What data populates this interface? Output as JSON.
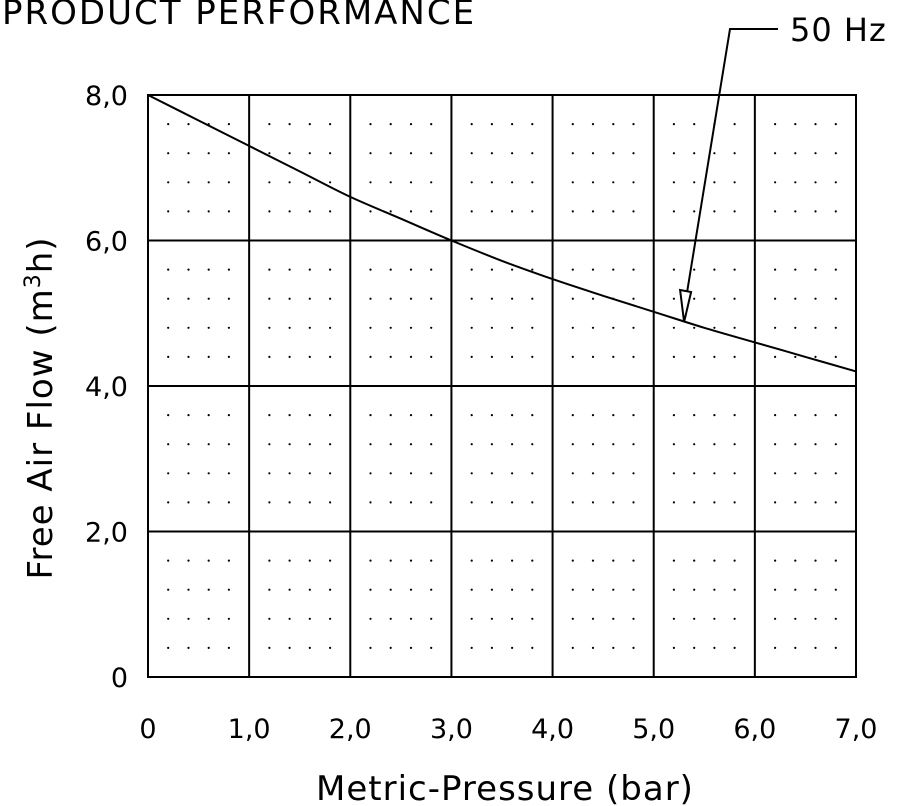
{
  "chart_data": {
    "type": "line",
    "title": "PRODUCT PERFORMANCE",
    "xlabel": "Metric-Pressure (bar)",
    "ylabel": "Free Air Flow (m3h)",
    "ylabel_parts": {
      "pre": "Free Air Flow (m",
      "sup": "3",
      "post": "h)"
    },
    "xlim": [
      0,
      7
    ],
    "ylim": [
      0,
      8
    ],
    "x_ticks": [
      0,
      1,
      2,
      3,
      4,
      5,
      6,
      7
    ],
    "x_tick_labels": [
      "0",
      "1,0",
      "2,0",
      "3,0",
      "4,0",
      "5,0",
      "6,0",
      "7,0"
    ],
    "y_ticks": [
      0,
      2,
      4,
      6,
      8
    ],
    "y_tick_labels": [
      "0",
      "2,0",
      "4,0",
      "6,0",
      "8,0"
    ],
    "grid": true,
    "minor_dots": true,
    "series": [
      {
        "name": "50 Hz",
        "x": [
          0,
          0.5,
          1.0,
          1.5,
          2.0,
          2.5,
          3.0,
          3.5,
          4.0,
          4.5,
          5.0,
          5.5,
          6.0,
          6.5,
          7.0
        ],
        "values": [
          8.0,
          7.65,
          7.3,
          6.95,
          6.6,
          6.3,
          6.0,
          5.72,
          5.47,
          5.24,
          5.02,
          4.8,
          4.6,
          4.4,
          4.2
        ]
      }
    ],
    "annotation": {
      "text": "50 Hz",
      "target_x": 5.3,
      "target_y": 4.88
    }
  }
}
